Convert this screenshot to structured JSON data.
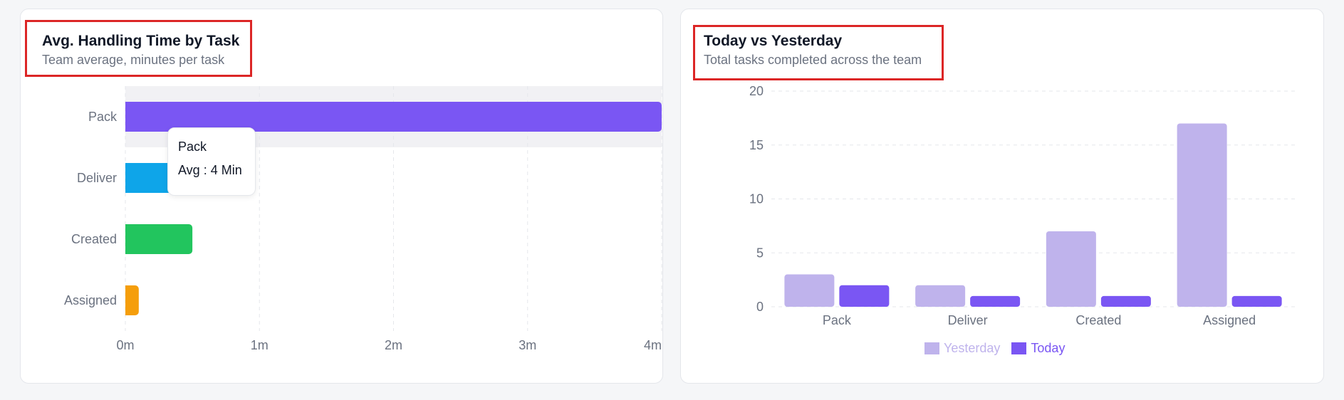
{
  "chart_data": [
    {
      "type": "bar",
      "orientation": "horizontal",
      "title": "Avg. Handling Time by Task",
      "subtitle": "Team average, minutes per task",
      "categories": [
        "Pack",
        "Deliver",
        "Created",
        "Assigned"
      ],
      "values": [
        4,
        0.4,
        0.5,
        0.1
      ],
      "colors": [
        "#7a56f3",
        "#0ea5e9",
        "#22c55e",
        "#f59e0b"
      ],
      "xlim": [
        0,
        4
      ],
      "x_ticks": [
        0,
        1,
        2,
        3,
        4
      ],
      "x_tick_labels": [
        "0m",
        "1m",
        "2m",
        "3m",
        "4m"
      ],
      "grid": true,
      "highlighted_category": "Pack",
      "tooltip": {
        "title": "Pack",
        "value_text": "Avg : 4 Min"
      }
    },
    {
      "type": "bar",
      "title": "Today vs Yesterday",
      "subtitle": "Total tasks completed across the team",
      "categories": [
        "Pack",
        "Deliver",
        "Created",
        "Assigned"
      ],
      "series": [
        {
          "name": "Yesterday",
          "values": [
            3,
            2,
            7,
            17
          ],
          "color": "#bfb3ec"
        },
        {
          "name": "Today",
          "values": [
            2,
            1,
            1,
            1
          ],
          "color": "#7a56f3"
        }
      ],
      "ylim": [
        0,
        20
      ],
      "y_ticks": [
        0,
        5,
        10,
        15,
        20
      ],
      "grid": true,
      "legend": "bottom"
    }
  ]
}
